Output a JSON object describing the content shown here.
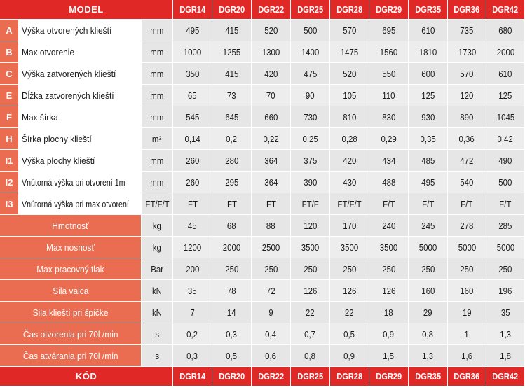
{
  "header": {
    "model_label": "MODEL",
    "models": [
      "DGR14",
      "DGR20",
      "DGR22",
      "DGR25",
      "DGR28",
      "DGR29",
      "DGR35",
      "DGR36",
      "DGR42"
    ]
  },
  "rows_lettered": [
    {
      "letter": "A",
      "name": "Výška otvorených klieští",
      "unit": "mm",
      "values": [
        "495",
        "415",
        "520",
        "500",
        "570",
        "695",
        "610",
        "735",
        "680"
      ]
    },
    {
      "letter": "B",
      "name": "Max otvorenie",
      "unit": "mm",
      "values": [
        "1000",
        "1255",
        "1300",
        "1400",
        "1475",
        "1560",
        "1810",
        "1730",
        "2000"
      ]
    },
    {
      "letter": "C",
      "name": "Výška zatvorených klieští",
      "unit": "mm",
      "values": [
        "350",
        "415",
        "420",
        "475",
        "520",
        "550",
        "600",
        "570",
        "610"
      ]
    },
    {
      "letter": "E",
      "name": "Dĺžka zatvorených klieští",
      "unit": "mm",
      "values": [
        "65",
        "73",
        "70",
        "90",
        "105",
        "110",
        "125",
        "120",
        "125"
      ]
    },
    {
      "letter": "F",
      "name": "Max šírka",
      "unit": "mm",
      "values": [
        "545",
        "645",
        "660",
        "730",
        "810",
        "830",
        "930",
        "890",
        "1045"
      ]
    },
    {
      "letter": "H",
      "name": "Šírka plochy klieští",
      "unit": "m²",
      "values": [
        "0,14",
        "0,2",
        "0,22",
        "0,25",
        "0,28",
        "0,29",
        "0,35",
        "0,36",
        "0,42"
      ]
    },
    {
      "letter": "I1",
      "name": "Výška plochy klieští",
      "unit": "mm",
      "values": [
        "260",
        "280",
        "364",
        "375",
        "420",
        "434",
        "485",
        "472",
        "490"
      ]
    },
    {
      "letter": "I2",
      "name": "Vnútorná výška pri otvorení 1m",
      "unit": "mm",
      "values": [
        "260",
        "295",
        "364",
        "390",
        "430",
        "488",
        "495",
        "540",
        "500"
      ]
    },
    {
      "letter": "I3",
      "name": "Vnútorná výška pri max otvorení",
      "unit": "FT/F/T",
      "values": [
        "FT",
        "FT",
        "FT",
        "FT/F",
        "FT/F/T",
        "F/T",
        "F/T",
        "F/T",
        "F/T"
      ]
    }
  ],
  "rows_full": [
    {
      "name": "Hmotnosť",
      "unit": "kg",
      "values": [
        "45",
        "68",
        "88",
        "120",
        "170",
        "240",
        "245",
        "278",
        "285"
      ]
    },
    {
      "name": "Max nosnosť",
      "unit": "kg",
      "values": [
        "1200",
        "2000",
        "2500",
        "3500",
        "3500",
        "3500",
        "5000",
        "5000",
        "5000"
      ]
    },
    {
      "name": "Max pracovný tlak",
      "unit": "Bar",
      "values": [
        "200",
        "250",
        "250",
        "250",
        "250",
        "250",
        "250",
        "250",
        "250"
      ]
    },
    {
      "name": "Sila valca",
      "unit": "kN",
      "values": [
        "35",
        "78",
        "72",
        "126",
        "126",
        "126",
        "160",
        "160",
        "196"
      ]
    },
    {
      "name": "Sila klieští pri špičke",
      "unit": "kN",
      "values": [
        "7",
        "14",
        "9",
        "22",
        "22",
        "18",
        "29",
        "19",
        "35"
      ]
    },
    {
      "name": "Čas otvorenia pri 70l /min",
      "unit": "s",
      "values": [
        "0,2",
        "0,3",
        "0,4",
        "0,7",
        "0,5",
        "0,9",
        "0,8",
        "1",
        "1,3"
      ]
    },
    {
      "name": "Čas atvárania pri 70l /min",
      "unit": "s",
      "values": [
        "0,3",
        "0,5",
        "0,6",
        "0,8",
        "0,9",
        "1,5",
        "1,3",
        "1,6",
        "1,8"
      ]
    }
  ],
  "footer": {
    "code_label": "KÓD",
    "codes": [
      "DGR14",
      "DGR20",
      "DGR22",
      "DGR25",
      "DGR28",
      "DGR29",
      "DGR35",
      "DGR36",
      "DGR42"
    ]
  },
  "colors": {
    "header_red": "#e02827",
    "label_salmon": "#ea6d51",
    "cell_grey": "#e6e6e6"
  }
}
